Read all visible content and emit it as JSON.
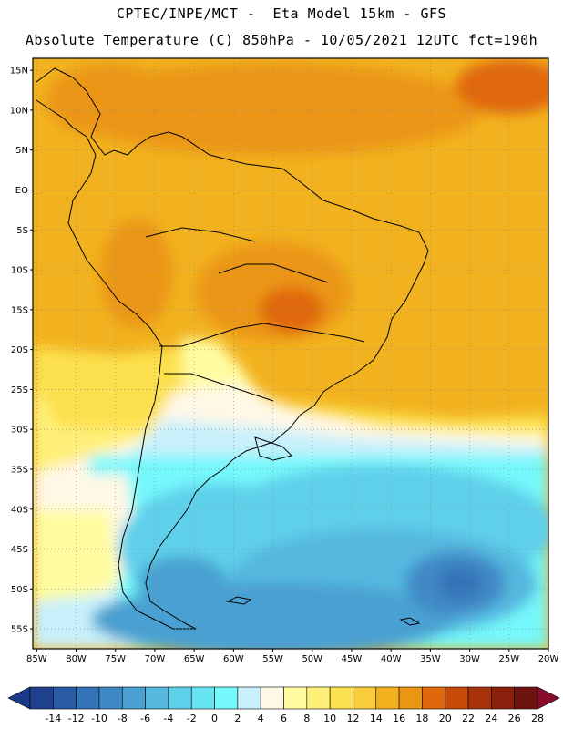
{
  "header": {
    "line1": "CPTEC/INPE/MCT -  Eta Model 15km - GFS",
    "line2": "Absolute Temperature (C) 850hPa - 10/05/2021 12UTC fct=190h"
  },
  "axes": {
    "lat_labels": [
      "15N",
      "10N",
      "5N",
      "EQ",
      "5S",
      "10S",
      "15S",
      "20S",
      "25S",
      "30S",
      "35S",
      "40S",
      "45S",
      "50S",
      "55S"
    ],
    "lat_values": [
      15,
      10,
      5,
      0,
      -5,
      -10,
      -15,
      -20,
      -25,
      -30,
      -35,
      -40,
      -45,
      -50,
      -55
    ],
    "lon_labels": [
      "85W",
      "80W",
      "75W",
      "70W",
      "65W",
      "60W",
      "55W",
      "50W",
      "45W",
      "40W",
      "35W",
      "30W",
      "25W",
      "20W"
    ],
    "lon_values": [
      -85,
      -80,
      -75,
      -70,
      -65,
      -60,
      -55,
      -50,
      -45,
      -40,
      -35,
      -30,
      -25,
      -20
    ],
    "lon_range": [
      -85.5,
      -20
    ],
    "lat_range": [
      -57.5,
      16.5
    ]
  },
  "colorbar": {
    "unit": "C",
    "labels": [
      "-14",
      "-12",
      "-10",
      "-8",
      "-6",
      "-4",
      "-2",
      "0",
      "2",
      "4",
      "6",
      "8",
      "10",
      "12",
      "14",
      "16",
      "18",
      "20",
      "22",
      "24",
      "26",
      "28"
    ],
    "colors": [
      "#1f3f8f",
      "#2b5aa6",
      "#3573b8",
      "#3f89c6",
      "#4aa0d2",
      "#55b8df",
      "#5fd0ea",
      "#66e4f2",
      "#74f8fb",
      "#c8f0fb",
      "#fff8e6",
      "#fffca0",
      "#fff07a",
      "#fce04e",
      "#f8cc3a",
      "#f2b21f",
      "#eb9612",
      "#e0680c",
      "#c64a08",
      "#a8320a",
      "#8a1f0c",
      "#6e1410"
    ],
    "under_color": "#1b3a8a",
    "over_color": "#8a0c2a"
  }
}
